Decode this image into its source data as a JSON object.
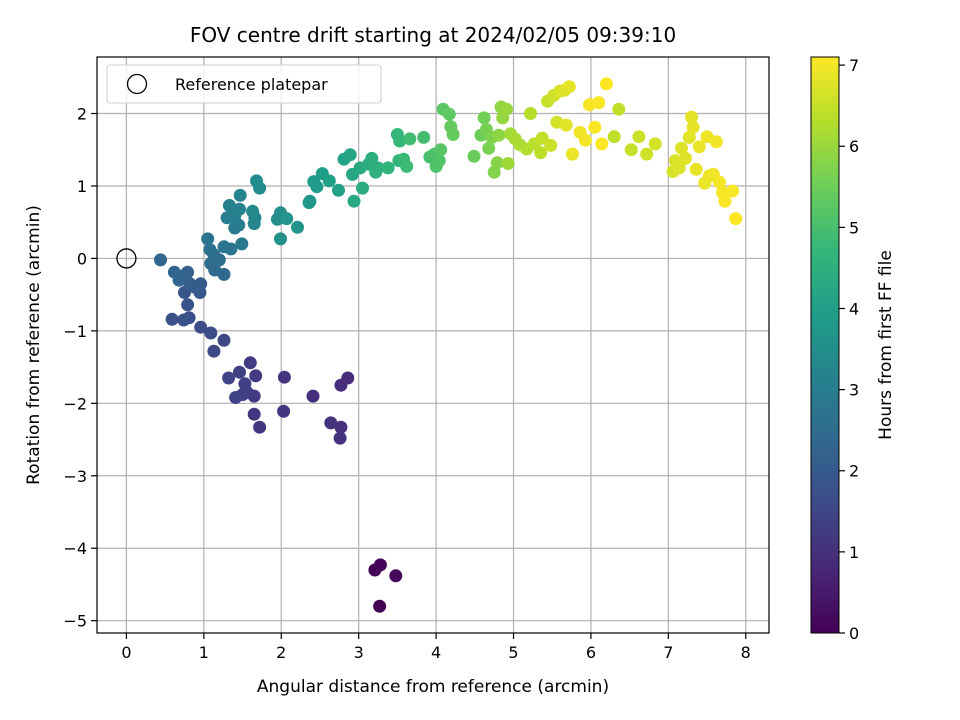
{
  "chart_data": {
    "type": "scatter",
    "title": "FOV centre drift starting at 2024/02/05 09:39:10",
    "xlabel": "Angular distance from reference (arcmin)",
    "ylabel": "Rotation from reference (arcmin)",
    "xlim": [
      -0.38,
      8.3
    ],
    "ylim": [
      -5.17,
      2.78
    ],
    "xticks": [
      0,
      1,
      2,
      3,
      4,
      5,
      6,
      7,
      8
    ],
    "yticks": [
      -5,
      -4,
      -3,
      -2,
      -1,
      0,
      1,
      2
    ],
    "xtick_labels": [
      "0",
      "1",
      "2",
      "3",
      "4",
      "5",
      "6",
      "7",
      "8"
    ],
    "ytick_labels": [
      "−5",
      "−4",
      "−3",
      "−2",
      "−1",
      "0",
      "1",
      "2"
    ],
    "grid": true,
    "colormap": "viridis",
    "colorbar": {
      "label": "Hours from first FF file",
      "range": [
        0,
        7.1
      ],
      "ticks": [
        0,
        1,
        2,
        3,
        4,
        5,
        6,
        7
      ],
      "tick_labels": [
        "0",
        "1",
        "2",
        "3",
        "4",
        "5",
        "6",
        "7"
      ]
    },
    "legend": {
      "position": "top-left",
      "entries": [
        "Reference platepar"
      ]
    },
    "reference_point": {
      "x": 0,
      "y": 0
    },
    "points": [
      [
        3.27,
        -4.8,
        0.0
      ],
      [
        3.21,
        -4.3,
        0.05
      ],
      [
        3.28,
        -4.23,
        0.1
      ],
      [
        3.48,
        -4.38,
        0.15
      ],
      [
        2.86,
        -1.65,
        0.9
      ],
      [
        2.77,
        -1.75,
        0.93
      ],
      [
        2.41,
        -1.9,
        0.96
      ],
      [
        2.77,
        -2.33,
        0.99
      ],
      [
        2.76,
        -2.48,
        1.02
      ],
      [
        2.64,
        -2.27,
        1.05
      ],
      [
        2.04,
        -1.64,
        1.08
      ],
      [
        2.03,
        -2.11,
        1.11
      ],
      [
        1.72,
        -2.33,
        1.14
      ],
      [
        1.65,
        -2.15,
        1.17
      ],
      [
        1.67,
        -1.62,
        1.2
      ],
      [
        1.65,
        -1.9,
        1.23
      ],
      [
        1.6,
        -1.44,
        1.26
      ],
      [
        1.56,
        -1.85,
        1.29
      ],
      [
        1.53,
        -1.73,
        1.32
      ],
      [
        1.5,
        -1.88,
        1.35
      ],
      [
        1.46,
        -1.57,
        1.38
      ],
      [
        1.41,
        -1.92,
        1.41
      ],
      [
        1.32,
        -1.65,
        1.44
      ],
      [
        1.26,
        -1.13,
        1.5
      ],
      [
        1.13,
        -1.28,
        1.55
      ],
      [
        1.09,
        -1.03,
        1.6
      ],
      [
        0.96,
        -0.95,
        1.65
      ],
      [
        0.81,
        -0.82,
        1.7
      ],
      [
        0.59,
        -0.84,
        1.75
      ],
      [
        0.74,
        -0.85,
        1.8
      ],
      [
        0.79,
        -0.64,
        1.85
      ],
      [
        0.75,
        -0.47,
        1.9
      ],
      [
        0.95,
        -0.47,
        1.95
      ],
      [
        0.96,
        -0.35,
        2.0
      ],
      [
        0.89,
        -0.4,
        2.05
      ],
      [
        0.82,
        -0.35,
        2.1
      ],
      [
        0.79,
        -0.19,
        2.15
      ],
      [
        0.75,
        -0.23,
        2.2
      ],
      [
        0.68,
        -0.3,
        2.25
      ],
      [
        0.62,
        -0.19,
        2.3
      ],
      [
        0.44,
        -0.02,
        2.35
      ],
      [
        1.26,
        -0.22,
        2.4
      ],
      [
        1.14,
        -0.16,
        2.45
      ],
      [
        1.09,
        -0.07,
        2.5
      ],
      [
        1.2,
        -0.02,
        2.55
      ],
      [
        1.13,
        0.05,
        2.6
      ],
      [
        1.08,
        0.12,
        2.65
      ],
      [
        1.05,
        0.27,
        2.7
      ],
      [
        1.26,
        0.16,
        2.75
      ],
      [
        1.35,
        0.13,
        2.8
      ],
      [
        1.49,
        0.2,
        2.85
      ],
      [
        1.4,
        0.42,
        2.9
      ],
      [
        1.45,
        0.46,
        2.95
      ],
      [
        1.3,
        0.56,
        3.0
      ],
      [
        1.4,
        0.59,
        3.05
      ],
      [
        1.33,
        0.73,
        3.1
      ],
      [
        1.46,
        0.68,
        3.15
      ],
      [
        1.47,
        0.87,
        3.2
      ],
      [
        1.66,
        0.56,
        3.25
      ],
      [
        1.65,
        0.48,
        3.3
      ],
      [
        1.63,
        0.65,
        3.35
      ],
      [
        1.68,
        1.07,
        3.4
      ],
      [
        1.72,
        0.97,
        3.45
      ],
      [
        1.95,
        0.54,
        3.5
      ],
      [
        1.99,
        0.63,
        3.55
      ],
      [
        1.99,
        0.27,
        3.6
      ],
      [
        2.07,
        0.55,
        3.65
      ],
      [
        2.21,
        0.43,
        3.7
      ],
      [
        2.36,
        0.77,
        3.75
      ],
      [
        2.37,
        0.79,
        3.8
      ],
      [
        2.42,
        1.06,
        3.85
      ],
      [
        2.46,
        0.99,
        3.9
      ],
      [
        2.53,
        1.17,
        3.95
      ],
      [
        2.62,
        1.07,
        4.0
      ],
      [
        2.74,
        0.94,
        4.05
      ],
      [
        2.81,
        1.37,
        4.1
      ],
      [
        2.89,
        1.43,
        4.15
      ],
      [
        2.92,
        1.16,
        4.2
      ],
      [
        2.94,
        0.79,
        4.25
      ],
      [
        3.02,
        1.25,
        4.3
      ],
      [
        3.05,
        0.97,
        4.35
      ],
      [
        3.13,
        1.3,
        4.4
      ],
      [
        3.17,
        1.38,
        4.45
      ],
      [
        3.25,
        1.25,
        4.5
      ],
      [
        3.22,
        1.19,
        4.55
      ],
      [
        3.38,
        1.25,
        4.6
      ],
      [
        3.52,
        1.35,
        4.65
      ],
      [
        3.5,
        1.71,
        4.7
      ],
      [
        3.53,
        1.62,
        4.75
      ],
      [
        3.58,
        1.37,
        4.8
      ],
      [
        3.62,
        1.27,
        4.85
      ],
      [
        3.66,
        1.65,
        4.9
      ],
      [
        3.84,
        1.67,
        4.95
      ],
      [
        3.92,
        1.4,
        5.0
      ],
      [
        3.98,
        1.44,
        5.05
      ],
      [
        4.0,
        1.27,
        5.1
      ],
      [
        4.04,
        1.35,
        5.15
      ],
      [
        4.06,
        1.5,
        5.2
      ],
      [
        4.09,
        2.06,
        5.25
      ],
      [
        4.17,
        1.99,
        5.3
      ],
      [
        4.19,
        1.82,
        5.35
      ],
      [
        4.22,
        1.71,
        5.4
      ],
      [
        4.49,
        1.41,
        5.45
      ],
      [
        4.58,
        1.7,
        5.5
      ],
      [
        4.62,
        1.94,
        5.55
      ],
      [
        4.65,
        1.78,
        5.6
      ],
      [
        4.68,
        1.52,
        5.65
      ],
      [
        4.72,
        1.67,
        5.7
      ],
      [
        4.75,
        1.19,
        5.75
      ],
      [
        4.79,
        1.32,
        5.8
      ],
      [
        4.81,
        1.7,
        5.85
      ],
      [
        4.84,
        2.09,
        5.9
      ],
      [
        4.86,
        1.94,
        5.95
      ],
      [
        4.91,
        2.06,
        6.0
      ],
      [
        4.93,
        1.31,
        6.05
      ],
      [
        4.96,
        1.72,
        6.1
      ],
      [
        5.02,
        1.65,
        6.15
      ],
      [
        5.08,
        1.57,
        6.2
      ],
      [
        5.17,
        1.51,
        6.25
      ],
      [
        5.22,
        2.0,
        6.3
      ],
      [
        5.27,
        1.58,
        6.35
      ],
      [
        5.35,
        1.46,
        6.4
      ],
      [
        5.37,
        1.66,
        6.45
      ],
      [
        5.44,
        2.17,
        6.5
      ],
      [
        5.48,
        1.56,
        6.55
      ],
      [
        5.52,
        2.25,
        6.6
      ],
      [
        5.56,
        1.88,
        6.65
      ],
      [
        5.6,
        2.31,
        6.7
      ],
      [
        5.66,
        2.32,
        6.75
      ],
      [
        5.68,
        1.84,
        6.8
      ],
      [
        5.72,
        2.37,
        6.85
      ],
      [
        5.76,
        1.44,
        6.9
      ],
      [
        5.86,
        1.74,
        6.95
      ],
      [
        5.93,
        1.63,
        7.0
      ],
      [
        5.98,
        2.12,
        7.02
      ],
      [
        6.05,
        1.81,
        7.04
      ],
      [
        6.1,
        2.15,
        7.06
      ],
      [
        6.14,
        1.58,
        7.08
      ],
      [
        6.2,
        2.41,
        7.1
      ]
    ],
    "points_late": [
      [
        6.3,
        1.68,
        6.4
      ],
      [
        6.36,
        2.06,
        6.45
      ],
      [
        6.52,
        1.5,
        6.5
      ],
      [
        6.62,
        1.68,
        6.55
      ],
      [
        6.72,
        1.44,
        6.6
      ],
      [
        6.83,
        1.58,
        6.65
      ],
      [
        7.06,
        1.2,
        6.7
      ],
      [
        7.09,
        1.35,
        6.72
      ],
      [
        7.14,
        1.25,
        6.74
      ],
      [
        7.17,
        1.52,
        6.76
      ],
      [
        7.22,
        1.38,
        6.78
      ],
      [
        7.27,
        1.67,
        6.8
      ],
      [
        7.3,
        1.95,
        6.82
      ],
      [
        7.32,
        1.81,
        6.84
      ],
      [
        7.36,
        1.23,
        6.86
      ],
      [
        7.4,
        1.54,
        6.88
      ],
      [
        7.47,
        1.04,
        6.9
      ],
      [
        7.5,
        1.68,
        6.92
      ],
      [
        7.53,
        1.14,
        6.94
      ],
      [
        7.58,
        1.16,
        6.96
      ],
      [
        7.62,
        1.61,
        6.98
      ],
      [
        7.66,
        1.05,
        7.0
      ],
      [
        7.7,
        0.91,
        7.03
      ],
      [
        7.73,
        0.79,
        7.05
      ],
      [
        7.83,
        0.93,
        7.07
      ],
      [
        7.87,
        0.55,
        7.1
      ]
    ]
  }
}
